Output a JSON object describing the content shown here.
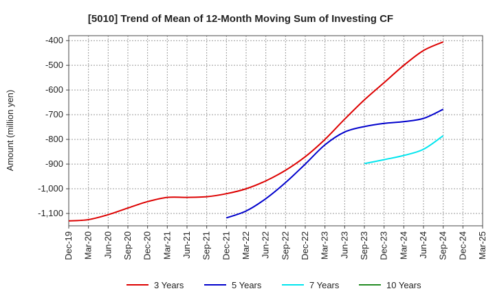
{
  "chart_data": {
    "type": "line",
    "title": "[5010]  Trend of Mean of 12-Month Moving Sum of Investing CF",
    "xlabel": "",
    "ylabel": "Amount (million yen)",
    "ylim": [
      -1150,
      -380
    ],
    "yticks": [
      -400,
      -500,
      -600,
      -700,
      -800,
      -900,
      -1000,
      -1100
    ],
    "ytick_labels": [
      "-400",
      "-500",
      "-600",
      "-700",
      "-800",
      "-900",
      "-1,000",
      "-1,100"
    ],
    "x_labels": [
      "Dec-19",
      "Mar-20",
      "Jun-20",
      "Sep-20",
      "Dec-20",
      "Mar-21",
      "Jun-21",
      "Sep-21",
      "Dec-21",
      "Mar-22",
      "Jun-22",
      "Sep-22",
      "Dec-22",
      "Mar-23",
      "Jun-23",
      "Sep-23",
      "Dec-23",
      "Mar-24",
      "Jun-24",
      "Sep-24",
      "Dec-24",
      "Mar-25"
    ],
    "grid": true,
    "series": [
      {
        "name": "3 Years",
        "color": "#dd0000",
        "values": [
          -1130,
          -1125,
          -1105,
          -1078,
          -1052,
          -1035,
          -1035,
          -1032,
          -1020,
          -1000,
          -968,
          -925,
          -870,
          -800,
          -718,
          -640,
          -570,
          -500,
          -440,
          -405,
          null,
          null
        ]
      },
      {
        "name": "5 Years",
        "color": "#0000cc",
        "values": [
          null,
          null,
          null,
          null,
          null,
          null,
          null,
          null,
          -1118,
          -1090,
          -1040,
          -975,
          -900,
          -822,
          -770,
          -748,
          -735,
          -728,
          -715,
          -678,
          null,
          null
        ]
      },
      {
        "name": "7 Years",
        "color": "#00e5ee",
        "values": [
          null,
          null,
          null,
          null,
          null,
          null,
          null,
          null,
          null,
          null,
          null,
          null,
          null,
          null,
          null,
          -898,
          -882,
          -865,
          -840,
          -785,
          null,
          null
        ]
      },
      {
        "name": "10 Years",
        "color": "#228b22",
        "values": [
          null,
          null,
          null,
          null,
          null,
          null,
          null,
          null,
          null,
          null,
          null,
          null,
          null,
          null,
          null,
          null,
          null,
          null,
          null,
          null,
          null,
          null
        ]
      }
    ]
  }
}
